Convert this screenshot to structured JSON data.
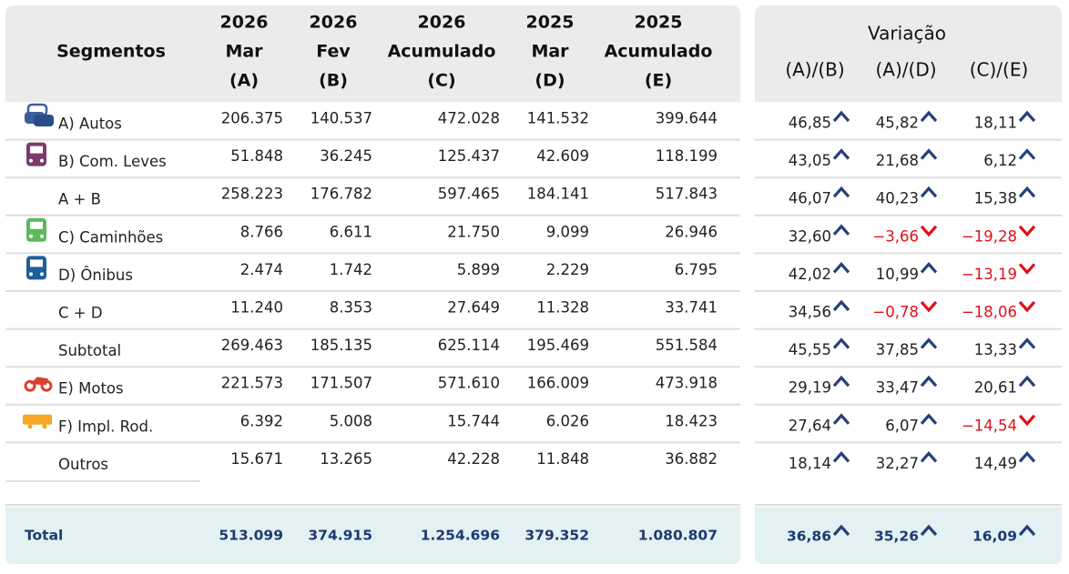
{
  "table": {
    "header": {
      "segment": "Segmentos",
      "columns": [
        [
          "2026",
          "Mar",
          "(A)"
        ],
        [
          "2026",
          "Fev",
          "(B)"
        ],
        [
          "2026",
          "Acumulado",
          "(C)"
        ],
        [
          "2025",
          "Mar",
          "(D)"
        ],
        [
          "2025",
          "Acumulado",
          "(E)"
        ]
      ]
    },
    "variation": {
      "title": "Variação",
      "columns": [
        "(A)/(B)",
        "(A)/(D)",
        "(C)/(E)"
      ]
    },
    "rows": [
      {
        "label": "A) Autos",
        "values": [
          "206.375",
          "140.537",
          "472.028",
          "141.532",
          "399.644"
        ],
        "variations": [
          "46,85",
          "45,82",
          "18,11"
        ]
      },
      {
        "label": "B) Com. Leves",
        "values": [
          "51.848",
          "36.245",
          "125.437",
          "42.609",
          "118.199"
        ],
        "variations": [
          "43,05",
          "21,68",
          "6,12"
        ]
      },
      {
        "label": "A + B",
        "values": [
          "258.223",
          "176.782",
          "597.465",
          "184.141",
          "517.843"
        ],
        "variations": [
          "46,07",
          "40,23",
          "15,38"
        ]
      },
      {
        "label": "C) Caminhões",
        "values": [
          "8.766",
          "6.611",
          "21.750",
          "9.099",
          "26.946"
        ],
        "variations": [
          "32,60",
          "−3,66",
          "−19,28"
        ]
      },
      {
        "label": "D) Ônibus",
        "values": [
          "2.474",
          "1.742",
          "5.899",
          "2.229",
          "6.795"
        ],
        "variations": [
          "42,02",
          "10,99",
          "−13,19"
        ]
      },
      {
        "label": "C + D",
        "values": [
          "11.240",
          "8.353",
          "27.649",
          "11.328",
          "33.741"
        ],
        "variations": [
          "34,56",
          "−0,78",
          "−18,06"
        ]
      },
      {
        "label": "Subtotal",
        "values": [
          "269.463",
          "185.135",
          "625.114",
          "195.469",
          "551.584"
        ],
        "variations": [
          "45,55",
          "37,85",
          "13,33"
        ]
      },
      {
        "label": "E) Motos",
        "values": [
          "221.573",
          "171.507",
          "571.610",
          "166.009",
          "473.918"
        ],
        "variations": [
          "29,19",
          "33,47",
          "20,61"
        ]
      },
      {
        "label": "F) Impl. Rod.",
        "values": [
          "6.392",
          "5.008",
          "15.744",
          "6.026",
          "18.423"
        ],
        "variations": [
          "27,64",
          "6,07",
          "−14,54"
        ]
      },
      {
        "label": "Outros",
        "values": [
          "15.671",
          "13.265",
          "42.228",
          "11.848",
          "36.882"
        ],
        "variations": [
          "18,14",
          "32,27",
          "14,49"
        ]
      }
    ],
    "total": {
      "label": "Total",
      "values": [
        "513.099",
        "374.915",
        "1.254.696",
        "379.352",
        "1.080.807"
      ],
      "variations": [
        "36,86",
        "35,26",
        "16,09"
      ]
    }
  }
}
